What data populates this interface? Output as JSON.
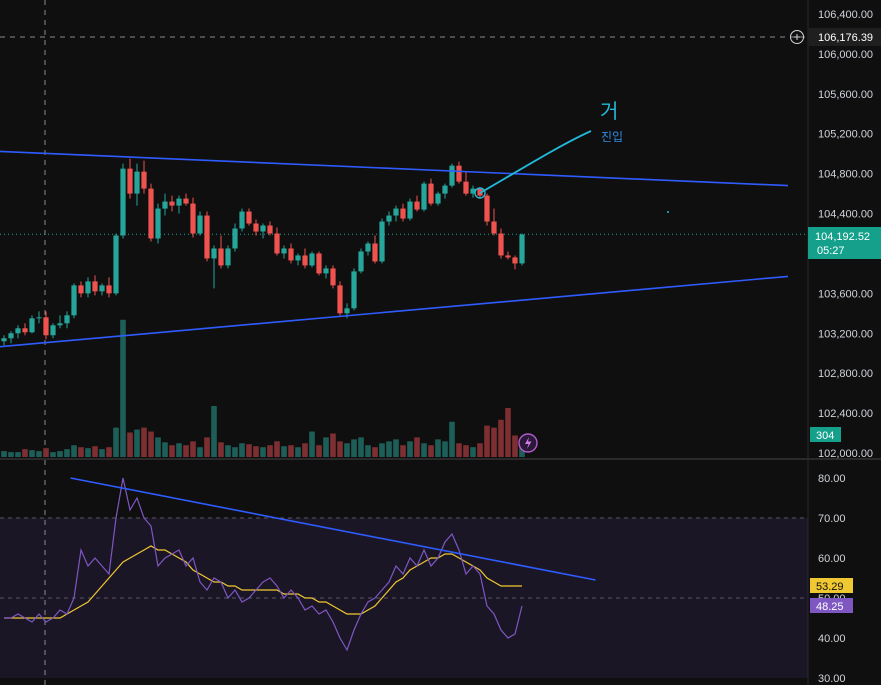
{
  "chart_data": [
    {
      "type": "candlestick",
      "title": "",
      "y_axis_ticks": [
        "106,400.00",
        "106,000.00",
        "105,600.00",
        "105,200.00",
        "104,800.00",
        "104,400.00",
        "103,600.00",
        "103,200.00",
        "102,800.00",
        "102,400.00",
        "102,000.00"
      ],
      "ylim": [
        102000,
        106400
      ],
      "crosshair_price": "106,176.39",
      "last_price": "104,192.52",
      "countdown": "05:27",
      "volume_label": "304",
      "candles_ohlc": [
        [
          103120,
          103180,
          103080,
          103150
        ],
        [
          103150,
          103220,
          103100,
          103200
        ],
        [
          103200,
          103280,
          103150,
          103250
        ],
        [
          103250,
          103300,
          103180,
          103210
        ],
        [
          103210,
          103380,
          103200,
          103350
        ],
        [
          103350,
          103420,
          103300,
          103360
        ],
        [
          103360,
          103420,
          103140,
          103180
        ],
        [
          103180,
          103300,
          103150,
          103280
        ],
        [
          103280,
          103380,
          103250,
          103300
        ],
        [
          103300,
          103420,
          103250,
          103380
        ],
        [
          103380,
          103700,
          103350,
          103680
        ],
        [
          103680,
          103720,
          103560,
          103600
        ],
        [
          103600,
          103760,
          103560,
          103720
        ],
        [
          103720,
          103780,
          103580,
          103620
        ],
        [
          103620,
          103700,
          103580,
          103680
        ],
        [
          103680,
          103760,
          103560,
          103600
        ],
        [
          103600,
          104200,
          103580,
          104180
        ],
        [
          104180,
          104900,
          104150,
          104850
        ],
        [
          104850,
          104950,
          104550,
          104600
        ],
        [
          104600,
          104900,
          104480,
          104820
        ],
        [
          104820,
          104930,
          104600,
          104650
        ],
        [
          104650,
          104700,
          104120,
          104150
        ],
        [
          104150,
          104500,
          104100,
          104450
        ],
        [
          104450,
          104600,
          104380,
          104520
        ],
        [
          104520,
          104580,
          104420,
          104480
        ],
        [
          104480,
          104580,
          104400,
          104550
        ],
        [
          104550,
          104600,
          104480,
          104500
        ],
        [
          104500,
          104560,
          104160,
          104200
        ],
        [
          104200,
          104420,
          104180,
          104380
        ],
        [
          104380,
          104420,
          103920,
          103950
        ],
        [
          103950,
          104080,
          103650,
          104050
        ],
        [
          104050,
          104180,
          103850,
          103880
        ],
        [
          103880,
          104080,
          103850,
          104050
        ],
        [
          104050,
          104300,
          104020,
          104250
        ],
        [
          104250,
          104450,
          104220,
          104420
        ],
        [
          104420,
          104450,
          104280,
          104300
        ],
        [
          104300,
          104340,
          104180,
          104220
        ],
        [
          104220,
          104300,
          104150,
          104280
        ],
        [
          104280,
          104320,
          104180,
          104200
        ],
        [
          104200,
          104260,
          103980,
          104000
        ],
        [
          104000,
          104080,
          103950,
          104050
        ],
        [
          104050,
          104100,
          103900,
          103930
        ],
        [
          103930,
          104000,
          103880,
          103980
        ],
        [
          103980,
          104050,
          103850,
          103880
        ],
        [
          103880,
          104020,
          103860,
          104000
        ],
        [
          104000,
          104020,
          103780,
          103800
        ],
        [
          103800,
          103880,
          103750,
          103850
        ],
        [
          103850,
          103880,
          103650,
          103680
        ],
        [
          103680,
          103720,
          103380,
          103400
        ],
        [
          103400,
          103500,
          103350,
          103450
        ],
        [
          103450,
          103850,
          103430,
          103820
        ],
        [
          103820,
          104050,
          103800,
          104020
        ],
        [
          104020,
          104120,
          103980,
          104100
        ],
        [
          104100,
          104180,
          103900,
          103920
        ],
        [
          103920,
          104350,
          103900,
          104320
        ],
        [
          104320,
          104420,
          104280,
          104380
        ],
        [
          104380,
          104480,
          104320,
          104450
        ],
        [
          104450,
          104500,
          104320,
          104350
        ],
        [
          104350,
          104550,
          104330,
          104520
        ],
        [
          104520,
          104580,
          104420,
          104440
        ],
        [
          104440,
          104720,
          104420,
          104700
        ],
        [
          104700,
          104750,
          104480,
          104500
        ],
        [
          104500,
          104620,
          104480,
          104600
        ],
        [
          104600,
          104700,
          104550,
          104680
        ],
        [
          104680,
          104900,
          104660,
          104880
        ],
        [
          104880,
          104920,
          104700,
          104720
        ],
        [
          104720,
          104820,
          104580,
          104600
        ],
        [
          104600,
          104680,
          104560,
          104650
        ],
        [
          104650,
          104660,
          104560,
          104580
        ],
        [
          104580,
          104600,
          104280,
          104320
        ],
        [
          104320,
          104450,
          104180,
          104200
        ],
        [
          104200,
          104250,
          103950,
          103980
        ],
        [
          103980,
          104020,
          103940,
          103960
        ],
        [
          103960,
          103980,
          103840,
          103900
        ],
        [
          103900,
          104200,
          103880,
          104190
        ]
      ],
      "volumes": [
        6,
        5,
        5,
        8,
        7,
        6,
        9,
        5,
        6,
        8,
        12,
        10,
        9,
        11,
        8,
        10,
        30,
        140,
        25,
        28,
        30,
        26,
        20,
        15,
        12,
        14,
        12,
        16,
        10,
        20,
        52,
        15,
        12,
        10,
        14,
        13,
        11,
        10,
        12,
        16,
        11,
        12,
        10,
        14,
        26,
        12,
        20,
        24,
        16,
        14,
        18,
        20,
        12,
        10,
        14,
        16,
        18,
        12,
        16,
        20,
        14,
        12,
        18,
        16,
        36,
        14,
        12,
        10,
        14,
        32,
        30,
        38,
        50,
        22,
        18
      ],
      "trendlines_price": [
        {
          "from": [
            -3,
            105030
          ],
          "to": [
            112,
            104680
          ]
        },
        {
          "from": [
            -3,
            103050
          ],
          "to": [
            112,
            103770
          ]
        }
      ],
      "annotation_text": [
        "거",
        "진입"
      ]
    },
    {
      "type": "line",
      "y_axis_ticks": [
        "80.00",
        "70.00",
        "60.00",
        "50.00",
        "40.00",
        "30.00"
      ],
      "ylim": [
        30,
        82
      ],
      "band": [
        50,
        70
      ],
      "rsi_label": "48.25",
      "ma_label": "53.29",
      "rsi": [
        45,
        45,
        46,
        45,
        44,
        46,
        44,
        45,
        47,
        46,
        50,
        62,
        58,
        60,
        58,
        56,
        70,
        80,
        72,
        75,
        70,
        68,
        58,
        60,
        61,
        62,
        58,
        60,
        54,
        52,
        55,
        54,
        50,
        52,
        49,
        50,
        52,
        54,
        55,
        53,
        50,
        52,
        50,
        47,
        48,
        46,
        47,
        44,
        40,
        37,
        42,
        46,
        49,
        50,
        52,
        54,
        58,
        56,
        60,
        58,
        62,
        58,
        60,
        64,
        66,
        62,
        56,
        58,
        56,
        48,
        46,
        42,
        40,
        41,
        48
      ],
      "rsi_ma": [
        45,
        45,
        45,
        45,
        45,
        45,
        45,
        45,
        45,
        46,
        47,
        48,
        49,
        51,
        53,
        55,
        57,
        59,
        60,
        61,
        62,
        63,
        62,
        62,
        61,
        60,
        59,
        57,
        56,
        55,
        54,
        54,
        53,
        53,
        52,
        52,
        52,
        52,
        52,
        52,
        51,
        51,
        51,
        50,
        50,
        49,
        49,
        48,
        47,
        46,
        46,
        46,
        47,
        48,
        50,
        52,
        54,
        55,
        57,
        58,
        59,
        60,
        60,
        61,
        61,
        60,
        59,
        58,
        57,
        55,
        54,
        53,
        53,
        53,
        53
      ],
      "trendline_rsi": {
        "from": [
          9.5,
          80
        ],
        "to": [
          84.5,
          54.5
        ]
      }
    }
  ],
  "colors": {
    "up": "#26a69a",
    "down": "#ef5350",
    "up_volume": "#1e5e58",
    "down_volume": "#7d2f31",
    "trendline": "#2f5cff",
    "rsi": "#7e57c2",
    "rsi_ma": "#f0c832",
    "annotation": "#22b8d8",
    "background": "#0f0f0f"
  }
}
